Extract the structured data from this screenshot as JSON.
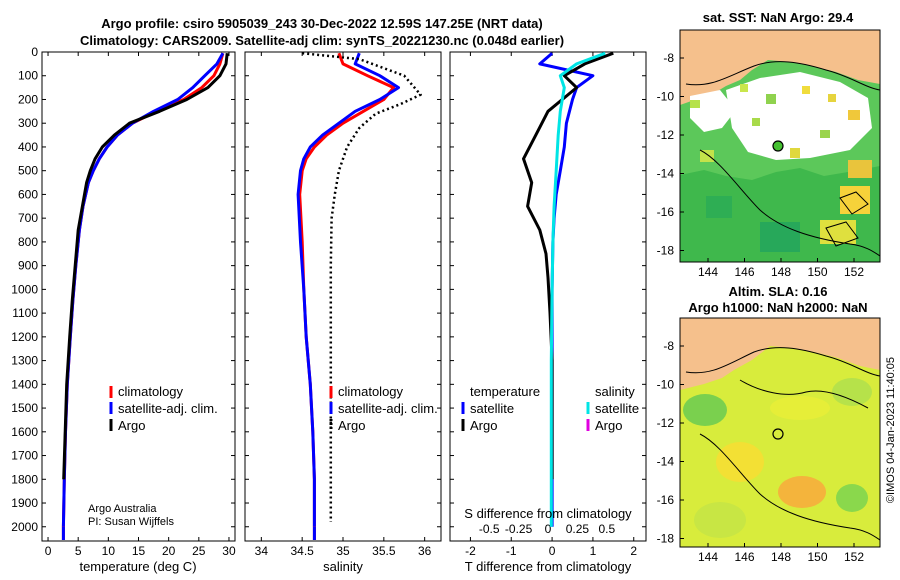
{
  "title": {
    "line1": "Argo profile: csiro 5905039_243 30-Dec-2022 12.59S 147.25E (NRT data)",
    "line2": "Climatology: CARS2009. Satellite-adj clim: synTS_20221230.nc (0.048d earlier)"
  },
  "credit": {
    "org": "Argo Australia",
    "pi": "PI: Susan Wijffels"
  },
  "timestamp": "©IMOS 04-Jan-2023 11:40:05",
  "colors": {
    "climatology": "#ff0000",
    "satellite_adj": "#0000ff",
    "argo": "#000000",
    "sat_T": "#0000ff",
    "sat_S": "#00e5e5",
    "argo_S": "#e000e0",
    "land": "#f5c08c"
  },
  "chart_data": [
    {
      "type": "line",
      "name": "temperature-panel",
      "xlabel": "temperature (deg C)",
      "xlim": [
        -1,
        31
      ],
      "ylim": [
        2060,
        0
      ],
      "xticks": [
        0,
        5,
        10,
        15,
        20,
        25,
        30
      ],
      "yticks": [
        0,
        100,
        200,
        300,
        400,
        500,
        600,
        700,
        800,
        900,
        1000,
        1100,
        1200,
        1300,
        1400,
        1500,
        1600,
        1700,
        1800,
        1900,
        2000
      ],
      "legend": [
        "climatology",
        "satellite-adj. clim.",
        "Argo"
      ],
      "series": [
        {
          "name": "climatology",
          "x": [
            29.0,
            28.5,
            27.5,
            25.5,
            22.5,
            18.0,
            14.0,
            11.5,
            9.8,
            8.5,
            7.5,
            6.7,
            5.8,
            5.2,
            4.6,
            4.1,
            3.7,
            3.2,
            2.9,
            2.7,
            2.55
          ],
          "y": [
            5,
            50,
            100,
            150,
            200,
            250,
            300,
            350,
            400,
            450,
            500,
            550,
            650,
            750,
            900,
            1050,
            1200,
            1400,
            1600,
            1800,
            2000
          ]
        },
        {
          "name": "satellite-adj. clim.",
          "x": [
            29.0,
            28.0,
            26.0,
            24.0,
            21.5,
            17.5,
            14.0,
            11.5,
            9.8,
            8.5,
            7.5,
            6.7,
            5.8,
            5.2,
            4.6,
            4.1,
            3.7,
            3.2,
            2.9,
            2.7,
            2.55
          ],
          "y": [
            5,
            50,
            100,
            150,
            200,
            250,
            300,
            350,
            400,
            450,
            500,
            550,
            650,
            750,
            900,
            1050,
            1200,
            1400,
            1600,
            1800,
            2000
          ]
        },
        {
          "name": "Argo",
          "x": [
            29.7,
            29.5,
            28.5,
            26.5,
            23.0,
            18.5,
            13.5,
            11.0,
            9.0,
            7.8,
            7.0,
            6.4,
            5.7,
            5.0,
            4.5,
            4.0,
            3.6,
            3.1,
            2.85,
            2.6
          ],
          "y": [
            5,
            50,
            100,
            150,
            200,
            250,
            300,
            350,
            400,
            450,
            500,
            550,
            650,
            750,
            900,
            1050,
            1200,
            1400,
            1600,
            1800
          ]
        }
      ]
    },
    {
      "type": "line",
      "name": "salinity-panel",
      "xlabel": "salinity",
      "xlim": [
        33.8,
        36.2
      ],
      "ylim": [
        2060,
        0
      ],
      "xticks": [
        34,
        34.5,
        35,
        35.5,
        36
      ],
      "legend": [
        "climatology",
        "satellite-adj. clim.",
        "Argo"
      ],
      "series": [
        {
          "name": "climatology",
          "x": [
            34.95,
            35.0,
            35.3,
            35.62,
            35.5,
            35.25,
            35.0,
            34.8,
            34.65,
            34.55,
            34.5,
            34.47,
            34.5,
            34.52,
            34.55,
            34.6,
            34.63,
            34.65,
            34.65
          ],
          "y": [
            5,
            50,
            100,
            150,
            200,
            250,
            300,
            350,
            400,
            450,
            500,
            600,
            800,
            1000,
            1200,
            1400,
            1600,
            1800,
            2000
          ]
        },
        {
          "name": "satellite-adj. clim.",
          "x": [
            35.2,
            35.15,
            35.45,
            35.68,
            35.45,
            35.15,
            34.95,
            34.75,
            34.6,
            34.52,
            34.48,
            34.45,
            34.48,
            34.52,
            34.55,
            34.6,
            34.63,
            34.65,
            34.65
          ],
          "y": [
            5,
            50,
            100,
            150,
            200,
            250,
            300,
            350,
            400,
            450,
            500,
            600,
            800,
            1000,
            1200,
            1400,
            1600,
            1800,
            2000
          ]
        },
        {
          "name": "Argo",
          "x": [
            34.5,
            35.2,
            35.75,
            35.95,
            35.7,
            35.4,
            35.2,
            35.05,
            34.95,
            34.9,
            34.86,
            34.85,
            34.85,
            34.85,
            34.85,
            34.85,
            34.85,
            34.85
          ],
          "y": [
            5,
            30,
            100,
            180,
            220,
            260,
            320,
            400,
            500,
            600,
            700,
            900,
            1100,
            1300,
            1500,
            1700,
            1900,
            1980
          ]
        }
      ]
    },
    {
      "type": "line",
      "name": "difference-panel",
      "xlabel": "T difference from climatology",
      "xlabel_top": "S difference from climatology",
      "xlim": [
        -2.5,
        2.3
      ],
      "ylim": [
        2060,
        0
      ],
      "xticks": [
        -2,
        -1,
        0,
        1,
        2
      ],
      "xticks_top": [
        -0.5,
        -0.25,
        0,
        0.25,
        0.5
      ],
      "xticks_top_labels": [
        "-0.5",
        "-0.25",
        "0",
        "0.25",
        "0.5"
      ],
      "legend_temperature": {
        "heading": "temperature",
        "items": [
          "satellite",
          "Argo"
        ]
      },
      "legend_salinity": {
        "heading": "salinity",
        "items": [
          "satellite",
          "Argo"
        ]
      },
      "series": [
        {
          "name": "T satellite",
          "x": [
            0,
            -0.3,
            1.0,
            0.6,
            0.5,
            0.35,
            0.3,
            0.2,
            0.1,
            0.05,
            0.02,
            0,
            0,
            0,
            0,
            0
          ],
          "y": [
            5,
            50,
            100,
            150,
            200,
            300,
            400,
            500,
            600,
            700,
            800,
            1000,
            1200,
            1500,
            1800,
            2000
          ]
        },
        {
          "name": "T Argo",
          "x": [
            1.5,
            0.8,
            0.3,
            0.6,
            -0.1,
            -0.4,
            -0.7,
            -0.5,
            -0.6,
            -0.3,
            -0.15,
            -0.1,
            -0.05,
            0,
            0,
            0
          ],
          "y": [
            5,
            50,
            100,
            150,
            250,
            350,
            450,
            550,
            650,
            750,
            850,
            950,
            1100,
            1300,
            1600,
            1800
          ]
        },
        {
          "name": "S satellite",
          "x": [
            1.3,
            0.6,
            0.2,
            0.3,
            0.2,
            0.15,
            0.1,
            0.05,
            0.02,
            0,
            -0.02,
            -0.02,
            -0.02,
            -0.02
          ],
          "y": [
            5,
            50,
            100,
            150,
            250,
            350,
            500,
            650,
            800,
            1000,
            1300,
            1600,
            1800,
            2000
          ]
        }
      ]
    }
  ],
  "maps": {
    "sst": {
      "title": "sat. SST: NaN Argo: 29.4"
    },
    "sla": {
      "title_line1": "Altim. SLA: 0.16",
      "title_line2": "Argo h1000: NaN h2000: NaN"
    },
    "lon_ticks": [
      "144",
      "146",
      "148",
      "150",
      "152"
    ],
    "lat_ticks": [
      "-8",
      "-10",
      "-12",
      "-14",
      "-16",
      "-18"
    ]
  }
}
